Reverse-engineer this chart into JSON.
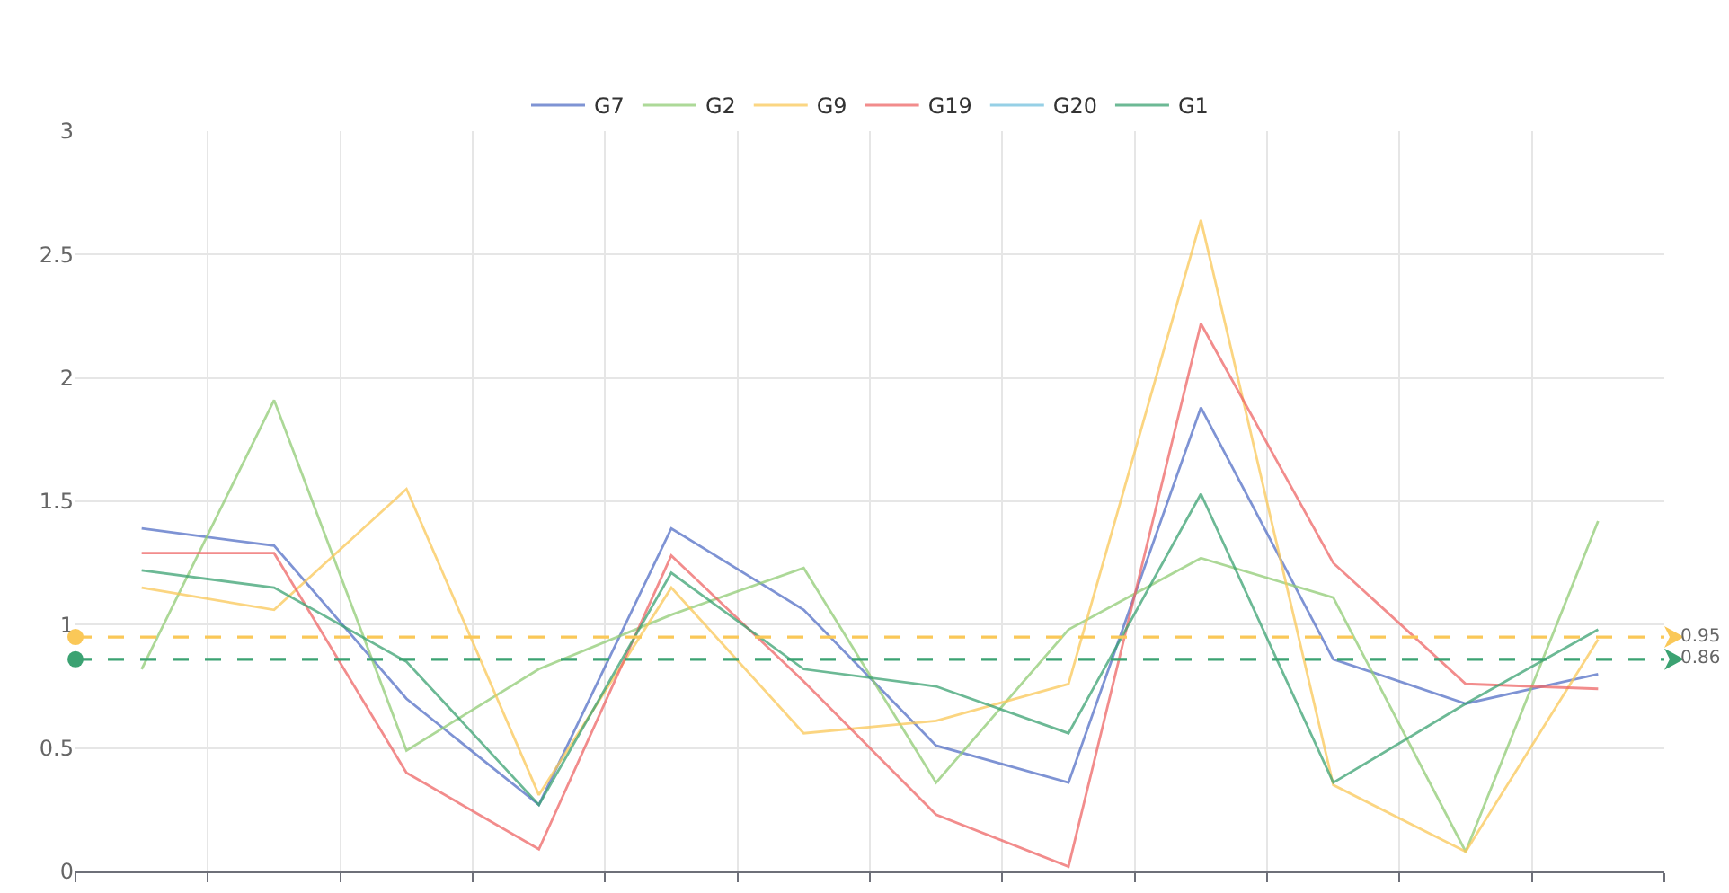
{
  "chart_data": {
    "type": "line",
    "categories": [
      null,
      null,
      null,
      null,
      null,
      null,
      null,
      null,
      null,
      null,
      null,
      null
    ],
    "series": [
      {
        "name": "G7",
        "color": "#5470c6",
        "values": [
          1.39,
          1.32,
          0.7,
          0.27,
          1.39,
          1.06,
          0.51,
          0.36,
          1.88,
          0.86,
          0.68,
          0.8
        ]
      },
      {
        "name": "G2",
        "color": "#91cc75",
        "values": [
          0.82,
          1.91,
          0.49,
          0.82,
          1.04,
          1.23,
          0.36,
          0.98,
          1.27,
          1.11,
          0.08,
          1.42
        ]
      },
      {
        "name": "G9",
        "color": "#fac858",
        "values": [
          1.15,
          1.06,
          1.55,
          0.31,
          1.15,
          0.56,
          0.61,
          0.76,
          2.64,
          0.35,
          0.08,
          0.94
        ]
      },
      {
        "name": "G19",
        "color": "#ee6666",
        "values": [
          1.29,
          1.29,
          0.4,
          0.09,
          1.28,
          0.77,
          0.23,
          0.02,
          2.22,
          1.25,
          0.76,
          0.74
        ]
      },
      {
        "name": "G20",
        "color": "#73c0de",
        "values": [
          null,
          null,
          null,
          null,
          null,
          null,
          null,
          null,
          null,
          null,
          null,
          null
        ]
      },
      {
        "name": "G1",
        "color": "#3ba272",
        "values": [
          1.22,
          1.15,
          0.85,
          0.27,
          1.21,
          0.82,
          0.75,
          0.56,
          1.53,
          0.36,
          0.68,
          0.98
        ]
      }
    ],
    "ylim": [
      0,
      3
    ],
    "yticks": [
      0,
      0.5,
      1,
      1.5,
      2,
      2.5,
      3
    ],
    "tick_labels": "y",
    "grid": true,
    "legend": "top",
    "marker": "none",
    "line_style": "solid",
    "ref_lines": [
      {
        "axis": "y",
        "value": 0.95,
        "label": "0.95",
        "color": "#fac858",
        "line_style": "dashed"
      },
      {
        "axis": "y",
        "value": 0.86,
        "label": "0.86",
        "color": "#3ba272",
        "line_style": "dashed"
      }
    ]
  }
}
